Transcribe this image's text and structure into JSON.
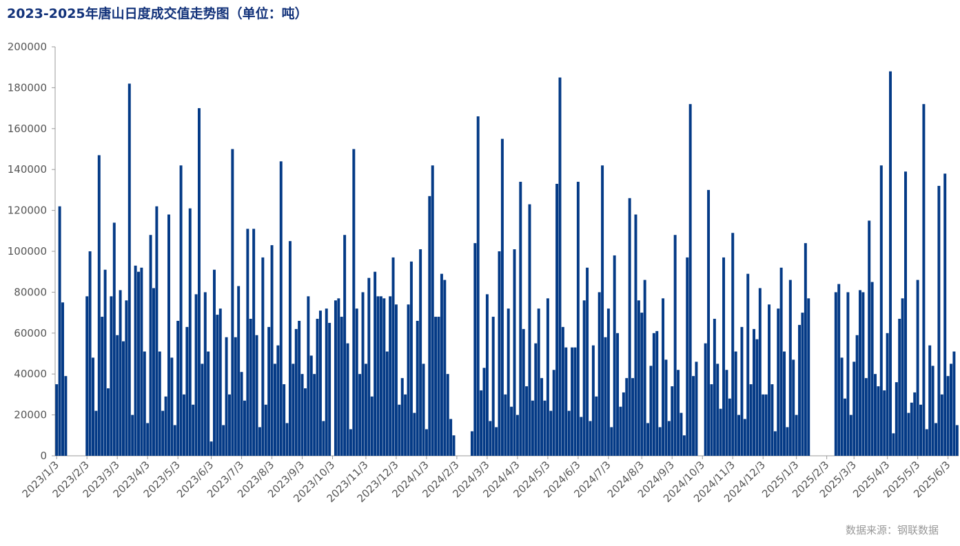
{
  "chart_data": {
    "type": "bar",
    "title": "2023-2025年唐山日度成交值走势图（单位：吨）",
    "source": "数据来源：钢联数据",
    "color": "#043a86",
    "grid": false,
    "ylim": [
      0,
      200000
    ],
    "yticks": [
      0,
      20000,
      40000,
      60000,
      80000,
      100000,
      120000,
      140000,
      160000,
      180000,
      200000
    ],
    "categories": [
      "2023/1/3",
      null,
      null,
      null,
      null,
      null,
      null,
      null,
      null,
      null,
      "2023/2/3",
      null,
      null,
      null,
      null,
      null,
      null,
      null,
      null,
      null,
      "2023/3/3",
      null,
      null,
      null,
      null,
      null,
      null,
      null,
      null,
      null,
      "2023/4/3",
      null,
      null,
      null,
      null,
      null,
      null,
      null,
      null,
      null,
      "2023/5/3",
      null,
      null,
      null,
      null,
      null,
      null,
      null,
      null,
      null,
      null,
      "2023/6/3",
      null,
      null,
      null,
      null,
      null,
      null,
      null,
      null,
      null,
      "2023/7/3",
      null,
      null,
      null,
      null,
      null,
      null,
      null,
      null,
      null,
      "2023/8/3",
      null,
      null,
      null,
      null,
      null,
      null,
      null,
      null,
      null,
      "2023/9/3",
      null,
      null,
      null,
      null,
      null,
      null,
      null,
      null,
      null,
      "2023/10/3",
      null,
      null,
      null,
      null,
      null,
      null,
      null,
      null,
      null,
      null,
      "2023/11/3",
      null,
      null,
      null,
      null,
      null,
      null,
      null,
      null,
      null,
      "2023/12/3",
      null,
      null,
      null,
      null,
      null,
      null,
      null,
      null,
      null,
      "2024/1/3",
      null,
      null,
      null,
      null,
      null,
      null,
      null,
      null,
      null,
      "2024/2/3",
      null,
      null,
      null,
      null,
      null,
      null,
      null,
      null,
      null,
      "2024/3/3",
      null,
      null,
      null,
      null,
      null,
      null,
      null,
      null,
      null,
      "2024/4/3",
      null,
      null,
      null,
      null,
      null,
      null,
      null,
      null,
      null,
      "2024/5/3",
      null,
      null,
      null,
      null,
      null,
      null,
      null,
      null,
      null,
      "2024/6/3",
      null,
      null,
      null,
      null,
      null,
      null,
      null,
      null,
      null,
      "2024/7/3",
      null,
      null,
      null,
      null,
      null,
      null,
      null,
      null,
      null,
      null,
      "2024/8/3",
      null,
      null,
      null,
      null,
      null,
      null,
      null,
      null,
      null,
      "2024/9/3",
      null,
      null,
      null,
      null,
      null,
      null,
      null,
      null,
      null,
      "2024/10/3",
      null,
      null,
      null,
      null,
      null,
      null,
      null,
      null,
      null,
      "2024/11/3",
      null,
      null,
      null,
      null,
      null,
      null,
      null,
      null,
      null,
      "2024/12/3",
      null,
      null,
      null,
      null,
      null,
      null,
      null,
      null,
      null,
      null,
      "2025/1/3",
      null,
      null,
      null,
      null,
      null,
      null,
      null,
      null,
      null,
      "2025/2/3",
      null,
      null,
      null,
      null,
      null,
      null,
      null,
      null,
      "2025/3/3",
      null,
      null,
      null,
      null,
      null,
      null,
      null,
      null,
      null,
      null,
      "2025/4/3",
      null,
      null,
      null,
      null,
      null,
      null,
      null,
      null,
      null,
      "2025/5/3",
      null,
      null,
      null,
      null,
      null,
      null,
      null,
      null,
      null,
      "2025/6/3",
      null,
      null,
      null
    ],
    "values": [
      35000,
      122000,
      75000,
      39000,
      null,
      null,
      null,
      null,
      null,
      null,
      78000,
      100000,
      48000,
      22000,
      147000,
      68000,
      91000,
      33000,
      78000,
      114000,
      59000,
      81000,
      56000,
      76000,
      182000,
      20000,
      93000,
      90000,
      92000,
      51000,
      16000,
      108000,
      82000,
      122000,
      51000,
      22000,
      29000,
      118000,
      48000,
      15000,
      66000,
      142000,
      30000,
      63000,
      121000,
      25000,
      79000,
      170000,
      45000,
      80000,
      51000,
      7000,
      91000,
      69000,
      72000,
      15000,
      58000,
      30000,
      150000,
      58000,
      83000,
      41000,
      27000,
      111000,
      67000,
      111000,
      59000,
      14000,
      97000,
      25000,
      63000,
      103000,
      45000,
      54000,
      144000,
      35000,
      16000,
      105000,
      45000,
      62000,
      66000,
      40000,
      33000,
      78000,
      49000,
      40000,
      67000,
      71000,
      17000,
      72000,
      65000,
      null,
      76000,
      77000,
      68000,
      108000,
      55000,
      13000,
      150000,
      72000,
      40000,
      80000,
      45000,
      87000,
      29000,
      90000,
      78000,
      78000,
      77000,
      51000,
      78000,
      97000,
      74000,
      25000,
      38000,
      30000,
      74000,
      95000,
      21000,
      66000,
      101000,
      45000,
      13000,
      127000,
      142000,
      68000,
      68000,
      89000,
      86000,
      40000,
      18000,
      10000,
      null,
      null,
      null,
      null,
      null,
      12000,
      104000,
      166000,
      32000,
      43000,
      79000,
      17000,
      68000,
      14000,
      100000,
      155000,
      30000,
      72000,
      24000,
      101000,
      20000,
      134000,
      62000,
      34000,
      123000,
      27000,
      55000,
      72000,
      38000,
      27000,
      77000,
      22000,
      42000,
      133000,
      185000,
      63000,
      53000,
      22000,
      53000,
      53000,
      134000,
      19000,
      76000,
      92000,
      17000,
      54000,
      29000,
      80000,
      142000,
      58000,
      72000,
      14000,
      98000,
      60000,
      24000,
      31000,
      38000,
      126000,
      38000,
      118000,
      76000,
      70000,
      86000,
      16000,
      44000,
      60000,
      61000,
      14000,
      77000,
      47000,
      17000,
      34000,
      108000,
      42000,
      21000,
      10000,
      97000,
      172000,
      39000,
      46000,
      null,
      null,
      55000,
      130000,
      35000,
      67000,
      45000,
      23000,
      97000,
      42000,
      28000,
      109000,
      51000,
      20000,
      63000,
      18000,
      89000,
      35000,
      62000,
      57000,
      82000,
      30000,
      30000,
      74000,
      35000,
      12000,
      72000,
      92000,
      51000,
      14000,
      86000,
      47000,
      20000,
      64000,
      70000,
      104000,
      77000,
      null,
      null,
      null,
      null,
      null,
      null,
      null,
      null,
      80000,
      84000,
      48000,
      28000,
      80000,
      20000,
      46000,
      59000,
      81000,
      80000,
      38000,
      115000,
      85000,
      40000,
      34000,
      142000,
      32000,
      60000,
      188000,
      11000,
      36000,
      67000,
      77000,
      139000,
      21000,
      26000,
      31000,
      86000,
      25000,
      172000,
      13000,
      54000,
      44000,
      16000,
      132000,
      30000,
      138000,
      39000,
      45000,
      51000,
      15000
    ]
  }
}
